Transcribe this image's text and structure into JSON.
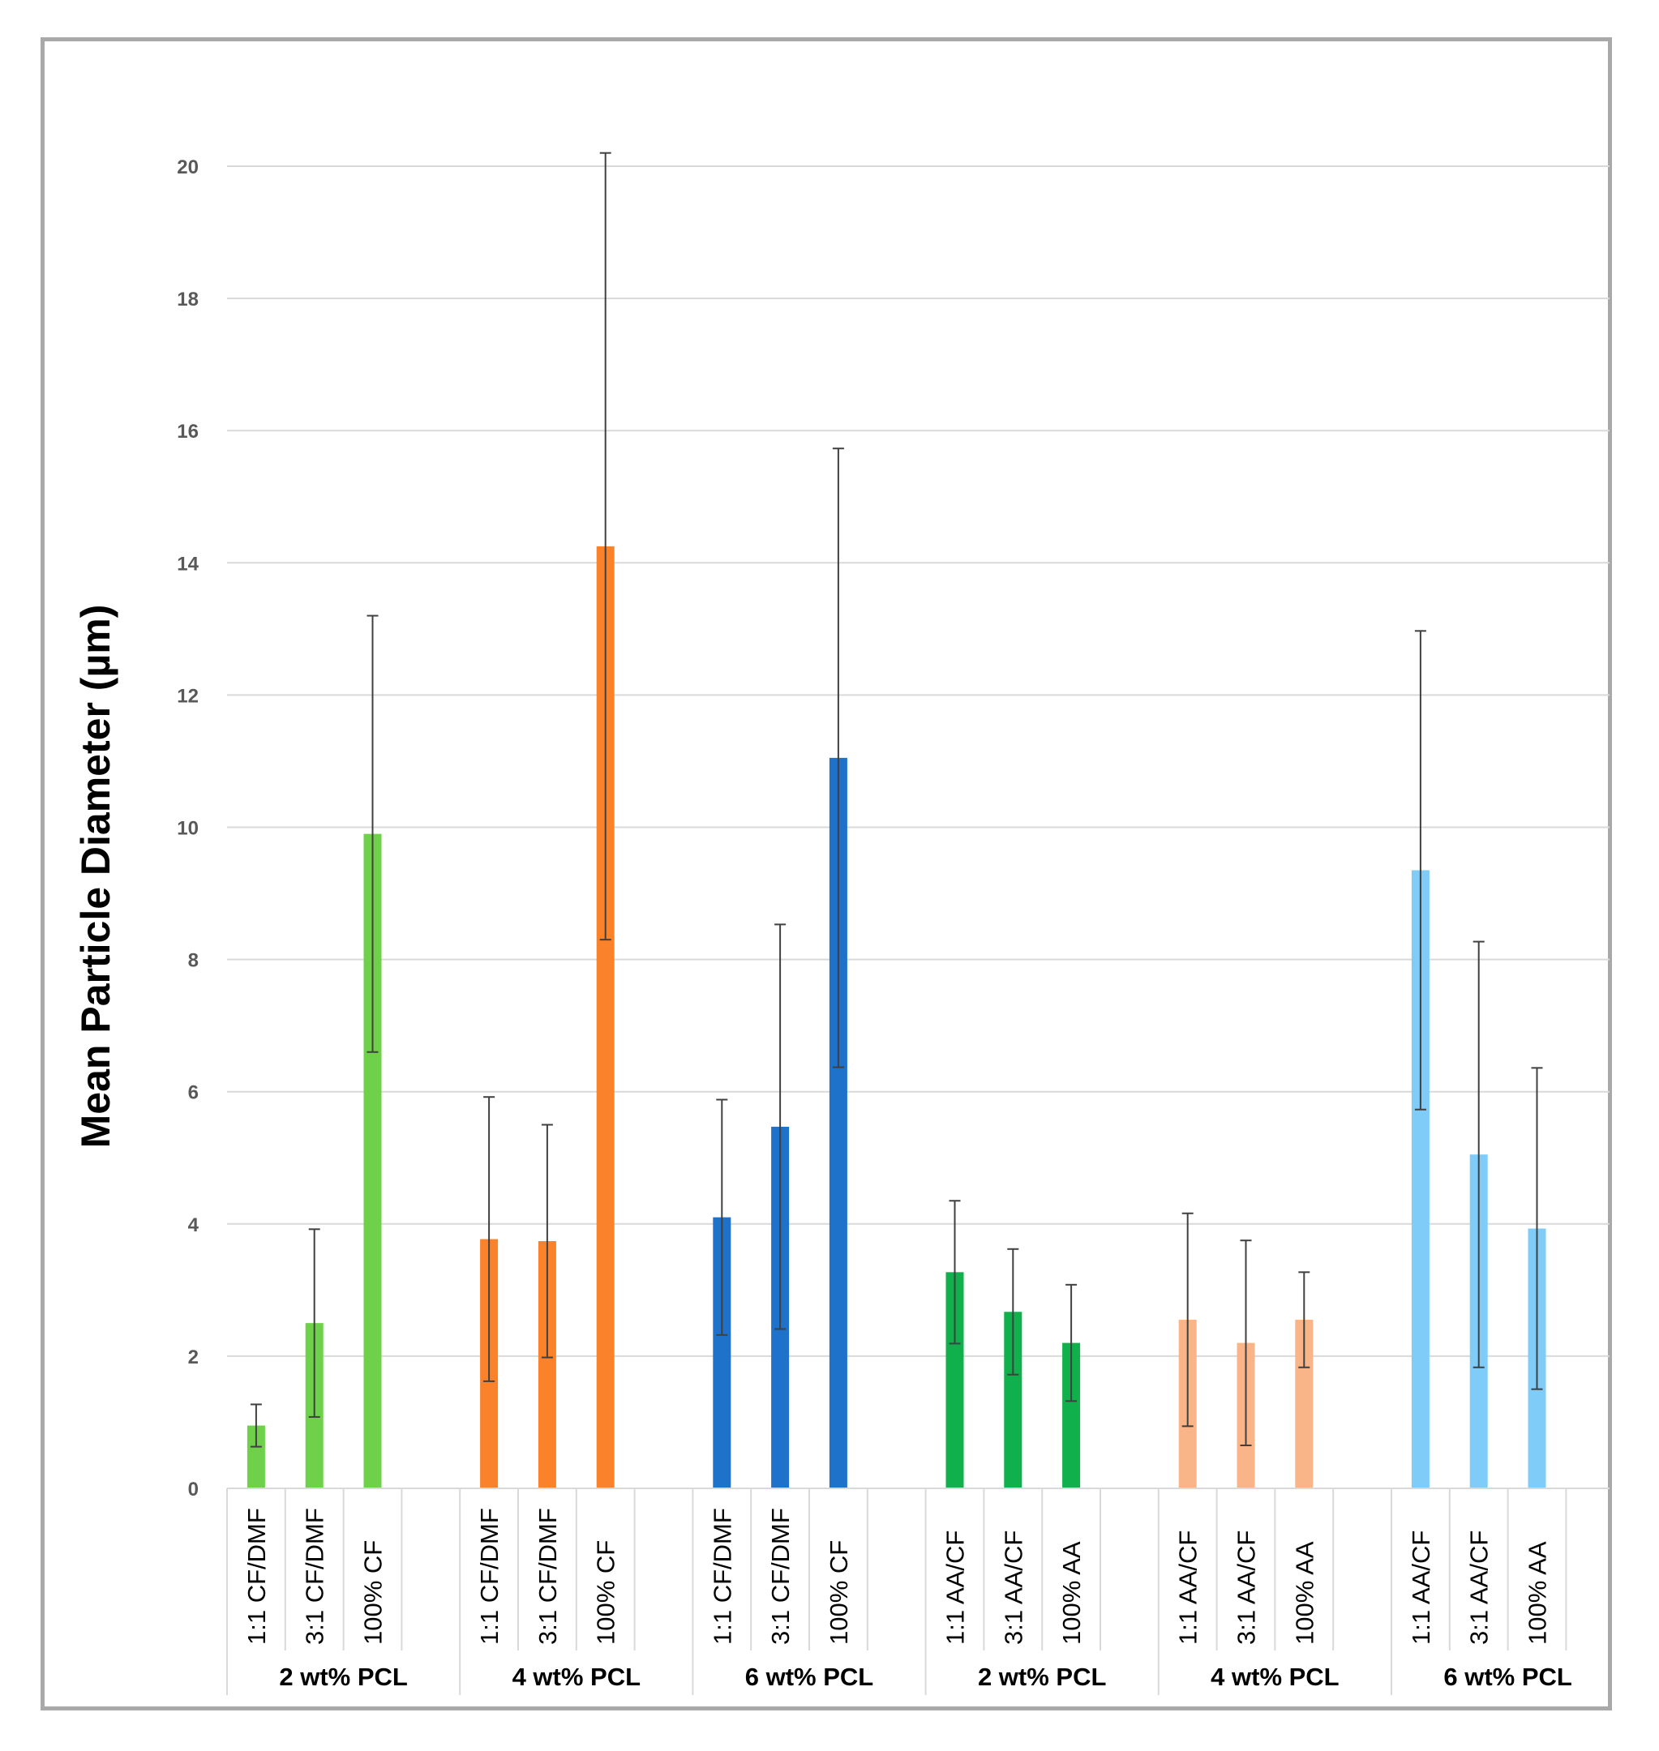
{
  "chart_data": {
    "type": "bar",
    "title": "",
    "xlabel": "",
    "ylabel": "Mean Particle Diameter (µm)",
    "ylim": [
      0,
      20
    ],
    "yticks": [
      0,
      2,
      4,
      6,
      8,
      10,
      12,
      14,
      16,
      18,
      20
    ],
    "grid": true,
    "legend": "none",
    "groups": [
      {
        "label": "2 wt% PCL",
        "color": "#6fd14a",
        "bars": [
          {
            "category": "1:1 CF/DMF",
            "value": 0.95,
            "error": 0.32
          },
          {
            "category": "3:1 CF/DMF",
            "value": 2.5,
            "error": 1.42
          },
          {
            "category": "100% CF",
            "value": 9.9,
            "error": 3.3
          }
        ]
      },
      {
        "label": "4 wt% PCL",
        "color": "#f9822b",
        "bars": [
          {
            "category": "1:1 CF/DMF",
            "value": 3.77,
            "error": 2.15
          },
          {
            "category": "3:1 CF/DMF",
            "value": 3.74,
            "error": 1.76
          },
          {
            "category": "100% CF",
            "value": 14.25,
            "error": 5.95
          }
        ]
      },
      {
        "label": "6 wt% PCL",
        "color": "#1f72c9",
        "bars": [
          {
            "category": "1:1 CF/DMF",
            "value": 4.1,
            "error": 1.78
          },
          {
            "category": "3:1 CF/DMF",
            "value": 5.47,
            "error": 3.06
          },
          {
            "category": "100% CF",
            "value": 11.05,
            "error": 4.68
          }
        ]
      },
      {
        "label": "2 wt% PCL",
        "color": "#10b04c",
        "bars": [
          {
            "category": "1:1 AA/CF",
            "value": 3.27,
            "error": 1.08
          },
          {
            "category": "3:1 AA/CF",
            "value": 2.67,
            "error": 0.95
          },
          {
            "category": "100% AA",
            "value": 2.2,
            "error": 0.88
          }
        ]
      },
      {
        "label": "4 wt% PCL",
        "color": "#f9b487",
        "bars": [
          {
            "category": "1:1 AA/CF",
            "value": 2.55,
            "error": 1.61
          },
          {
            "category": "3:1 AA/CF",
            "value": 2.2,
            "error": 1.55
          },
          {
            "category": "100% AA",
            "value": 2.55,
            "error": 0.72
          }
        ]
      },
      {
        "label": "6 wt% PCL",
        "color": "#80ccf9",
        "bars": [
          {
            "category": "1:1 AA/CF",
            "value": 9.35,
            "error": 3.62
          },
          {
            "category": "3:1 AA/CF",
            "value": 5.05,
            "error": 3.22
          },
          {
            "category": "100% AA",
            "value": 3.93,
            "error": 2.43
          }
        ]
      }
    ]
  }
}
